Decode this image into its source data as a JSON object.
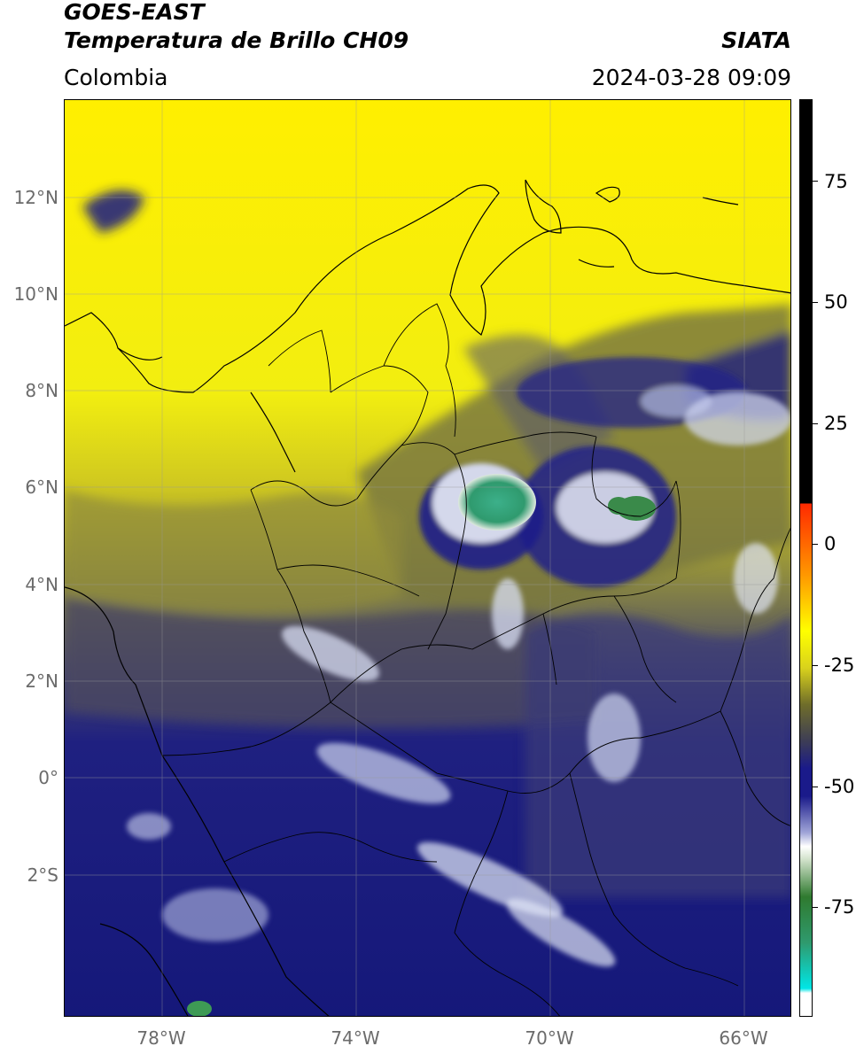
{
  "header": {
    "title_line1": "GOES-EAST",
    "title_line2": "Temperatura de Brillo CH09",
    "brand": "SIATA",
    "region": "Colombia",
    "datetime": "2024-03-28 09:09"
  },
  "map": {
    "lat_labels": [
      "12°N",
      "10°N",
      "8°N",
      "6°N",
      "4°N",
      "2°N",
      "0°",
      "2°S"
    ],
    "lon_labels": [
      "78°W",
      "74°W",
      "70°W",
      "66°W"
    ]
  },
  "colorbar": {
    "tick_labels": [
      "75",
      "50",
      "25",
      "0",
      "-25",
      "-50",
      "-75"
    ],
    "range": [
      -95,
      95
    ],
    "colors": {
      "black": "#000000",
      "red": "#ff2a00",
      "orange": "#ff9a00",
      "yellow": "#ffff00",
      "olive": "#6f6d2a",
      "navy": "#1a1a8a",
      "white": "#ffffff",
      "green": "#2f7a2f",
      "cyan": "#00e6e6"
    }
  }
}
